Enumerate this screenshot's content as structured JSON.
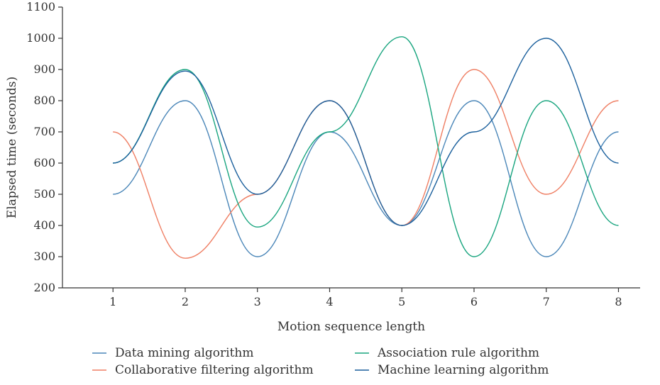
{
  "chart_data": {
    "type": "line",
    "title": "",
    "xlabel": "Motion sequence length",
    "ylabel": "Elapsed time (seconds)",
    "x": [
      1,
      2,
      3,
      4,
      5,
      6,
      7,
      8
    ],
    "xlim": [
      0.3,
      8.3
    ],
    "ylim": [
      200,
      1100
    ],
    "yticks": [
      200,
      300,
      400,
      500,
      600,
      700,
      800,
      900,
      1000,
      1100
    ],
    "xticks": [
      1,
      2,
      3,
      4,
      5,
      6,
      7,
      8
    ],
    "grid": false,
    "legend_position": "bottom",
    "series": [
      {
        "name": "Data mining algorithm",
        "color": "#4a86b8",
        "values": [
          500,
          800,
          300,
          700,
          400,
          800,
          300,
          700
        ]
      },
      {
        "name": "Collaborative filtering algorithm",
        "color": "#ef7f64",
        "values": [
          700,
          295,
          500,
          800,
          400,
          900,
          500,
          800
        ]
      },
      {
        "name": "Association rule algorithm",
        "color": "#19a57f",
        "values": [
          600,
          900,
          395,
          700,
          1005,
          300,
          800,
          400
        ]
      },
      {
        "name": "Machine learning algorithm",
        "color": "#1a5f9c",
        "values": [
          600,
          895,
          500,
          800,
          400,
          700,
          1000,
          600
        ]
      }
    ]
  }
}
